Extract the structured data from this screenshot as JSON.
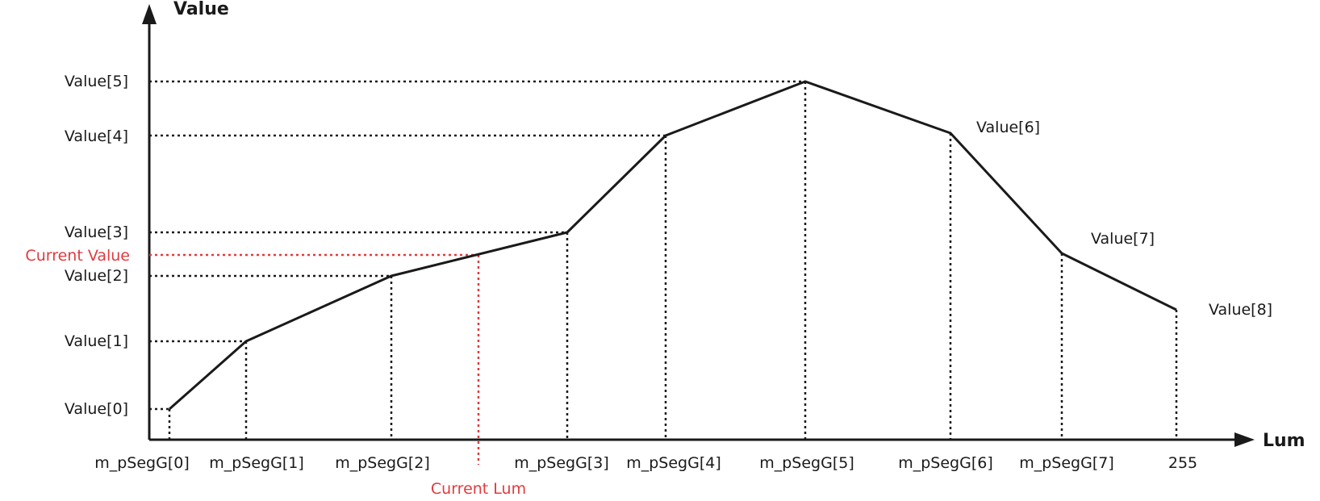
{
  "axes": {
    "y_title": "Value",
    "x_title": "Lum"
  },
  "y_labels": [
    "Value[0]",
    "Value[1]",
    "Value[2]",
    "Value[3]",
    "Value[4]",
    "Value[5]"
  ],
  "right_labels": [
    "Value[6]",
    "Value[7]",
    "Value[8]"
  ],
  "x_labels": [
    "m_pSegG[0]",
    "m_pSegG[1]",
    "m_pSegG[2]",
    "m_pSegG[3]",
    "m_pSegG[4]",
    "m_pSegG[5]",
    "m_pSegG[6]",
    "m_pSegG[7]",
    "255"
  ],
  "current": {
    "value_label": "Current Value",
    "lum_label": "Current Lum",
    "color": "#e03a3e"
  },
  "colors": {
    "line": "#1a1a1a",
    "highlight": "#e03a3e"
  }
}
